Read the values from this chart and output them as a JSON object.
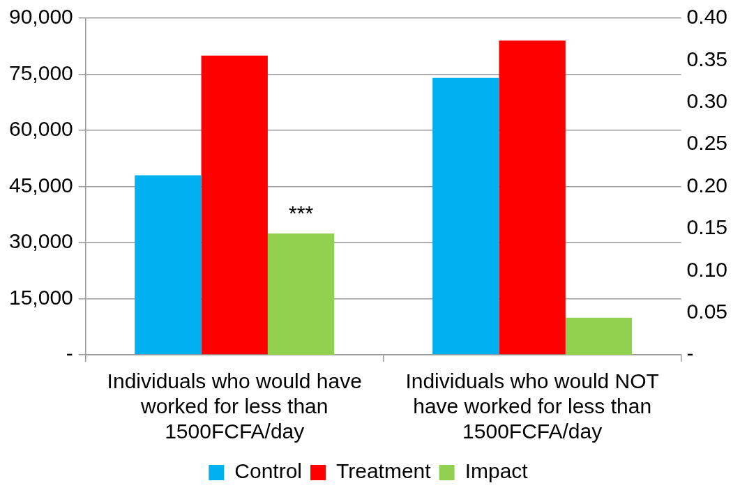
{
  "chart_data": {
    "type": "bar",
    "categories": [
      "Individuals who would have worked for less than 1500FCFA/day",
      "Individuals who would NOT have worked for less than 1500FCFA/day"
    ],
    "series": [
      {
        "name": "Control",
        "color": "#00b0f0",
        "values": [
          48000,
          74000
        ]
      },
      {
        "name": "Treatment",
        "color": "#ff0000",
        "values": [
          80000,
          84000
        ]
      },
      {
        "name": "Impact",
        "color": "#92d050",
        "values": [
          0.144,
          0.044
        ],
        "axis": "y2"
      }
    ],
    "ylim": [
      0,
      90000
    ],
    "yticks": [
      {
        "value": 0,
        "label": "-"
      },
      {
        "value": 15000,
        "label": "15,000"
      },
      {
        "value": 30000,
        "label": "30,000"
      },
      {
        "value": 45000,
        "label": "45,000"
      },
      {
        "value": 60000,
        "label": "60,000"
      },
      {
        "value": 75000,
        "label": "75,000"
      },
      {
        "value": 90000,
        "label": "90,000"
      }
    ],
    "y2lim": [
      0,
      0.4
    ],
    "y2ticks": [
      {
        "value": 0,
        "label": "-"
      },
      {
        "value": 0.05,
        "label": "0.05"
      },
      {
        "value": 0.1,
        "label": "0.10"
      },
      {
        "value": 0.15,
        "label": "0.15"
      },
      {
        "value": 0.2,
        "label": "0.20"
      },
      {
        "value": 0.25,
        "label": "0.25"
      },
      {
        "value": 0.3,
        "label": "0.30"
      },
      {
        "value": 0.35,
        "label": "0.35"
      },
      {
        "value": 0.4,
        "label": "0.40"
      }
    ],
    "annotations": [
      "***"
    ],
    "grid": "y",
    "legend": "bottom"
  }
}
